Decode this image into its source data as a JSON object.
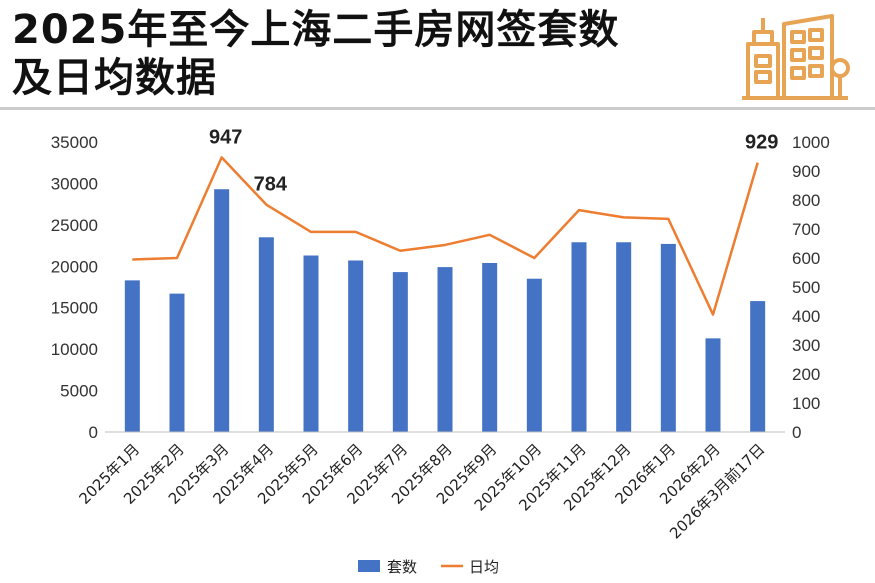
{
  "header": {
    "title_line1": "2025年至今上海二手房网签套数",
    "title_line2": "及日均数据",
    "logo_icon": "buildings-icon",
    "logo_color": "#E8A455"
  },
  "chart_data": {
    "type": "bar",
    "categories": [
      "2025年1月",
      "2025年2月",
      "2025年3月",
      "2025年4月",
      "2025年5月",
      "2025年6月",
      "2025年7月",
      "2025年8月",
      "2025年9月",
      "2025年10月",
      "2025年11月",
      "2025年12月",
      "2026年1月",
      "2026年2月",
      "2026年3月前17日"
    ],
    "series": [
      {
        "name": "套数",
        "type": "bar",
        "axis": "left",
        "color": "#4472C4",
        "values": [
          18300,
          16700,
          29300,
          23500,
          21300,
          20700,
          19300,
          19900,
          20400,
          18500,
          22900,
          22900,
          22700,
          11300,
          15800
        ]
      },
      {
        "name": "日均",
        "type": "line",
        "axis": "right",
        "color": "#ED7D31",
        "values": [
          595,
          600,
          947,
          784,
          690,
          690,
          625,
          645,
          680,
          600,
          765,
          740,
          735,
          405,
          929
        ]
      }
    ],
    "annotations": [
      {
        "series": 1,
        "index": 2,
        "label": "947"
      },
      {
        "series": 1,
        "index": 3,
        "label": "784"
      },
      {
        "series": 1,
        "index": 14,
        "label": "929"
      }
    ],
    "yleft": {
      "min": 0,
      "max": 35000,
      "ticks": [
        "0",
        "5000",
        "10000",
        "15000",
        "20000",
        "25000",
        "30000",
        "35000"
      ]
    },
    "yright": {
      "min": 0,
      "max": 1000,
      "ticks": [
        "0",
        "100",
        "200",
        "300",
        "400",
        "500",
        "600",
        "700",
        "800",
        "900",
        "1000"
      ]
    },
    "grid": false,
    "legend_position": "bottom"
  }
}
